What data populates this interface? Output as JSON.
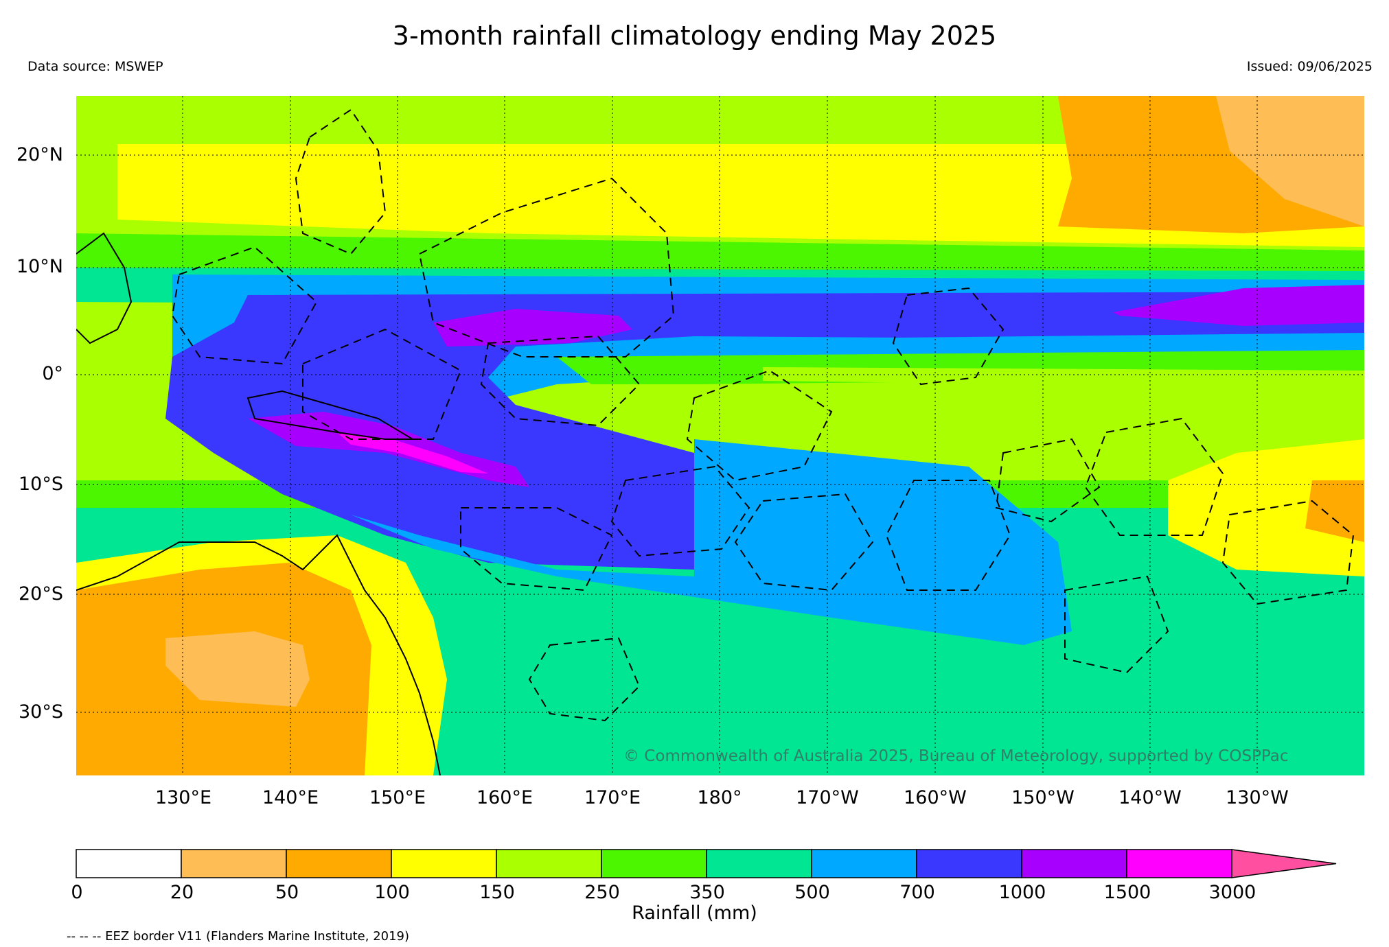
{
  "header": {
    "title": "3-month rainfall climatology ending May 2025",
    "source": "Data source: MSWEP",
    "issued": "Issued: 09/06/2025"
  },
  "map": {
    "lat_labels": [
      "20°N",
      "10°N",
      "0°",
      "10°S",
      "20°S",
      "30°S"
    ],
    "lon_labels": [
      "130°E",
      "140°E",
      "150°E",
      "160°E",
      "170°E",
      "180°",
      "170°W",
      "160°W",
      "150°W",
      "140°W",
      "130°W"
    ],
    "credit": "© Commonwealth of Australia 2025, Bureau of Meteorology, supported by COSPPac",
    "border_style": "dashed-eez",
    "gridlines": "dotted"
  },
  "colorbar": {
    "title": "Rainfall (mm)",
    "tick_labels": [
      "0",
      "20",
      "50",
      "100",
      "150",
      "250",
      "350",
      "500",
      "700",
      "1000",
      "1500",
      "3000"
    ],
    "colors": [
      "#ffffff",
      "#ffbd55",
      "#ffaa00",
      "#ffff00",
      "#aaff00",
      "#4cf500",
      "#00e693",
      "#00a8ff",
      "#3a38ff",
      "#a800ff",
      "#ff00ff",
      "#ff4fa0"
    ],
    "extends": "max"
  },
  "footer": {
    "eez_note": "-- -- -- EEZ border V11 (Flanders Marine Institute, 2019)"
  }
}
